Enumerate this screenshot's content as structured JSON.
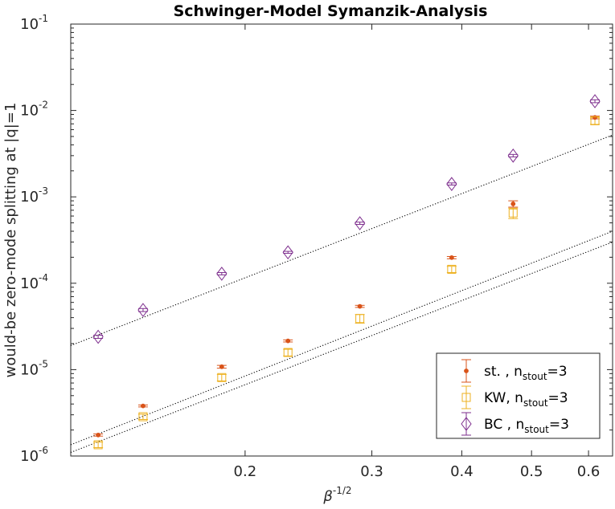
{
  "chart_data": {
    "type": "scatter",
    "title": "Schwinger-Model Symanzik-Analysis",
    "xlabel": {
      "base": "β",
      "superscript": "-1/2"
    },
    "ylabel": "would-be zero-mode splitting at |q|=1",
    "xscale": "log",
    "yscale": "log",
    "xlim": [
      0.1145,
      0.648
    ],
    "ylim": [
      1e-06,
      0.1
    ],
    "grid": false,
    "legend_position": "bottom-right",
    "x_ticks": [
      {
        "value": 0.2,
        "label": "0.2"
      },
      {
        "value": 0.3,
        "label": "0.3"
      },
      {
        "value": 0.4,
        "label": "0.4"
      },
      {
        "value": 0.5,
        "label": "0.5"
      },
      {
        "value": 0.6,
        "label": "0.6"
      }
    ],
    "y_ticks": [
      {
        "value": 1e-06,
        "base": "10",
        "exp": "-6"
      },
      {
        "value": 1e-05,
        "base": "10",
        "exp": "-5"
      },
      {
        "value": 0.0001,
        "base": "10",
        "exp": "-4"
      },
      {
        "value": 0.001,
        "base": "10",
        "exp": "-3"
      },
      {
        "value": 0.01,
        "base": "10",
        "exp": "-2"
      },
      {
        "value": 0.1,
        "base": "10",
        "exp": "-1"
      }
    ],
    "x": [
      0.125,
      0.1443,
      0.1856,
      0.2294,
      0.2887,
      0.3873,
      0.4714,
      0.6124
    ],
    "series": [
      {
        "legend": {
          "prefix": "st. , n",
          "sub": "stout",
          "suffix": "=3"
        },
        "marker": "dot",
        "color": "#D95319",
        "y": [
          1.75e-06,
          3.8e-06,
          1.08e-05,
          2.15e-05,
          5.4e-05,
          0.000198,
          0.00083,
          0.0083
        ],
        "err": [
          5e-08,
          1e-07,
          4e-07,
          6e-07,
          1.5e-06,
          6e-06,
          7e-05,
          0.0003
        ]
      },
      {
        "legend": {
          "prefix": "KW, n",
          "sub": "stout",
          "suffix": "=3"
        },
        "marker": "square",
        "color": "#EDB120",
        "y": [
          1.35e-06,
          2.85e-06,
          8.1e-06,
          1.58e-05,
          3.9e-05,
          0.000145,
          0.00065,
          0.0076
        ],
        "err": [
          1e-07,
          2e-07,
          7e-07,
          1.4e-06,
          4.5e-06,
          1.2e-05,
          9e-05,
          0.0007
        ]
      },
      {
        "legend": {
          "prefix": "BC , n",
          "sub": "stout",
          "suffix": "=3"
        },
        "marker": "diamond",
        "color": "#7E2F8E",
        "y": [
          2.4e-05,
          4.9e-05,
          0.000129,
          0.000228,
          0.000495,
          0.00141,
          0.003,
          0.0128
        ],
        "err": [
          1e-06,
          2e-06,
          4e-06,
          6e-06,
          1.5e-05,
          4e-05,
          0.0001,
          0.0005
        ]
      }
    ],
    "fit_lines": [
      {
        "points": [
          [
            0.1145,
            1.9e-05
          ],
          [
            0.648,
            0.0052
          ]
        ]
      },
      {
        "points": [
          [
            0.1145,
            1.35e-06
          ],
          [
            0.648,
            0.0004
          ]
        ]
      },
      {
        "points": [
          [
            0.1145,
            1.1e-06
          ],
          [
            0.648,
            0.0003
          ]
        ]
      }
    ]
  }
}
